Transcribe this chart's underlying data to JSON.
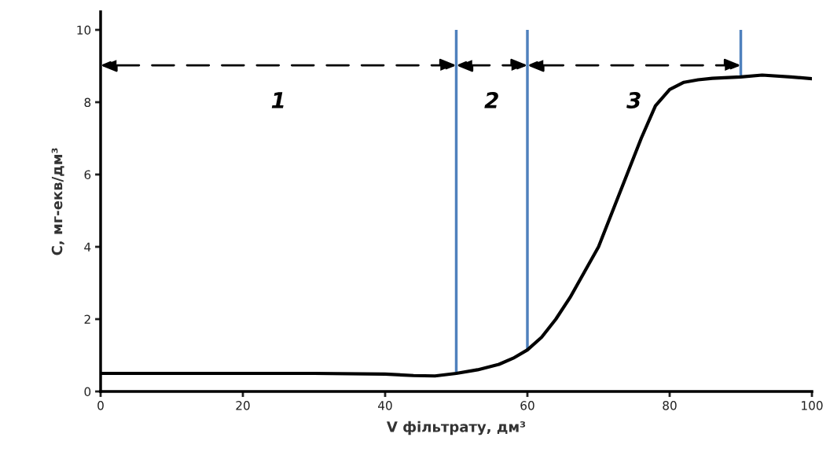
{
  "chart_data": {
    "type": "line",
    "xlabel": "V фільтрату, дм³",
    "ylabel": "C, мг-екв/дм³",
    "x": [
      0,
      10,
      20,
      30,
      40,
      44,
      47,
      50,
      53,
      56,
      58,
      60,
      62,
      64,
      66,
      68,
      70,
      72,
      74,
      76,
      78,
      80,
      82,
      84,
      86,
      90,
      93,
      97,
      100
    ],
    "series": [
      {
        "color": "#000000",
        "values": [
          0.5,
          0.5,
          0.5,
          0.5,
          0.48,
          0.44,
          0.43,
          0.5,
          0.6,
          0.75,
          0.92,
          1.15,
          1.5,
          2.0,
          2.6,
          3.3,
          4.0,
          5.0,
          6.0,
          7.0,
          7.9,
          8.35,
          8.55,
          8.62,
          8.66,
          8.7,
          8.75,
          8.7,
          8.65
        ]
      }
    ],
    "xlim": [
      0,
      100
    ],
    "xticks": [
      0,
      20,
      40,
      60,
      80,
      100
    ],
    "ylim": [
      0,
      10.5
    ],
    "yticks": [
      0,
      2,
      4,
      6,
      8,
      10
    ],
    "grid": false,
    "legend": false,
    "marker": "none",
    "line_style": "solid",
    "ref_lines": [
      {
        "axis": "x",
        "value": 50,
        "color": "#4f81bd"
      },
      {
        "axis": "x",
        "value": 60,
        "color": "#4f81bd"
      },
      {
        "axis": "x",
        "value": 90,
        "color": "#4f81bd"
      }
    ],
    "annotations": [
      "1",
      "2",
      "3"
    ]
  }
}
